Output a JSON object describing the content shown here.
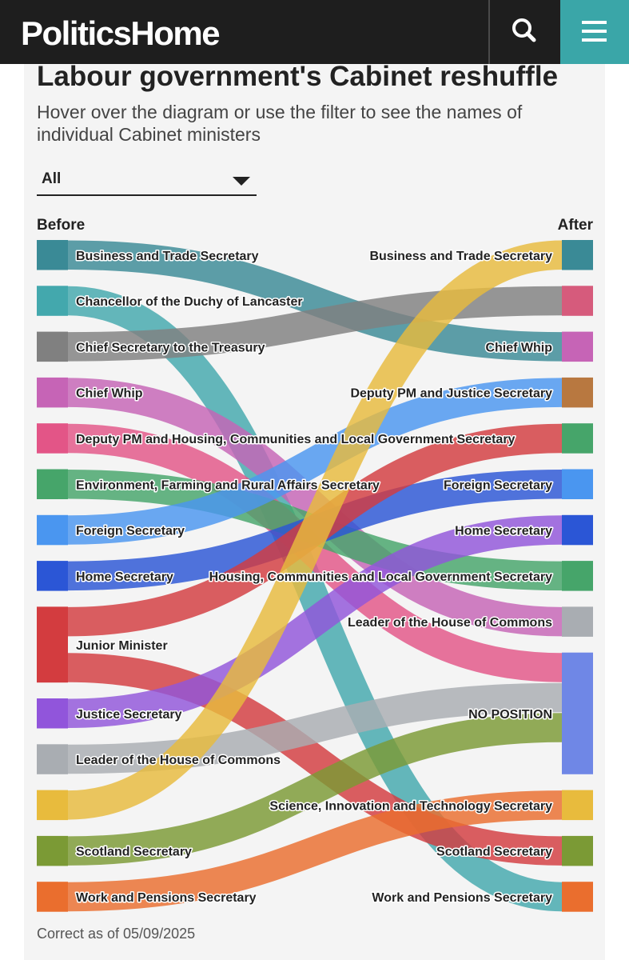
{
  "header": {
    "logo": "PoliticsHome",
    "search_icon": "search-icon",
    "menu_icon": "menu-icon",
    "bg_color": "#1e1e1e",
    "accent_color": "#3aa6a8"
  },
  "title": "Labour government's Cabinet reshuffle",
  "subtitle": "Hover over the diagram or use the filter to see the names of individual Cabinet ministers",
  "filter": {
    "selected": "All"
  },
  "columns": {
    "before": "Before",
    "after": "After"
  },
  "diagram": {
    "before_nodes": [
      {
        "id": "b_bt",
        "label": "Business and Trade Secretary",
        "color": "#3a8a96",
        "size": 1
      },
      {
        "id": "b_cdl",
        "label": "Chancellor of the Duchy of Lancaster",
        "color": "#43a8ad",
        "size": 1
      },
      {
        "id": "b_cst",
        "label": "Chief Secretary to the Treasury",
        "color": "#808080",
        "size": 1
      },
      {
        "id": "b_cw",
        "label": "Chief Whip",
        "color": "#c664b6",
        "size": 1
      },
      {
        "id": "b_dpm",
        "label": "Deputy PM and Housing, Communities and Local Government Secretary",
        "color": "#e35587",
        "size": 1
      },
      {
        "id": "b_env",
        "label": "Environment, Farming and Rural Affairs Secretary",
        "color": "#46a56a",
        "size": 1
      },
      {
        "id": "b_fs",
        "label": "Foreign Secretary",
        "color": "#4a96f0",
        "size": 1
      },
      {
        "id": "b_hs",
        "label": "Home Secretary",
        "color": "#2b56d6",
        "size": 1
      },
      {
        "id": "b_jm",
        "label": "Junior Minister",
        "color": "#d33c3f",
        "size": 2
      },
      {
        "id": "b_js",
        "label": "Justice Secretary",
        "color": "#9155db",
        "size": 1
      },
      {
        "id": "b_lhc",
        "label": "Leader of the House of Commons",
        "color": "#a9adb2",
        "size": 1
      },
      {
        "id": "b_sit",
        "label": "",
        "color": "#e8bb3d",
        "size": 1
      },
      {
        "id": "b_sco",
        "label": "Scotland Secretary",
        "color": "#7b9a35",
        "size": 1
      },
      {
        "id": "b_wp",
        "label": "Work and Pensions Secretary",
        "color": "#ea6e2e",
        "size": 1
      }
    ],
    "after_nodes": [
      {
        "id": "a_bt",
        "label": "Business and Trade Secretary",
        "color": "#3a8a96",
        "size": 1
      },
      {
        "id": "a_cdl",
        "label": "",
        "color": "#d65b7c",
        "size": 1
      },
      {
        "id": "a_cw",
        "label": "Chief Whip",
        "color": "#c664b6",
        "size": 1
      },
      {
        "id": "a_dpm",
        "label": "Deputy PM and Justice Secretary",
        "color": "#b87840",
        "size": 1
      },
      {
        "id": "a_env",
        "label": "",
        "color": "#46a56a",
        "size": 1
      },
      {
        "id": "a_fs",
        "label": "Foreign Secretary",
        "color": "#4a96f0",
        "size": 1
      },
      {
        "id": "a_hs",
        "label": "Home Secretary",
        "color": "#2b56d6",
        "size": 1
      },
      {
        "id": "a_hclg",
        "label": "Housing, Communities and Local Government Secretary",
        "color": "#46a56a",
        "size": 1
      },
      {
        "id": "a_lhc",
        "label": "Leader of the House of Commons",
        "color": "#a9adb2",
        "size": 1
      },
      {
        "id": "a_np",
        "label": "NO POSITION",
        "color": "#6f87e6",
        "size": 3
      },
      {
        "id": "a_sit",
        "label": "Science, Innovation and Technology Secretary",
        "color": "#e8bb3d",
        "size": 1
      },
      {
        "id": "a_sco",
        "label": "Scotland Secretary",
        "color": "#7b9a35",
        "size": 1
      },
      {
        "id": "a_wp",
        "label": "Work and Pensions Secretary",
        "color": "#ea6e2e",
        "size": 1
      }
    ],
    "links": [
      {
        "from": "b_bt",
        "to": "a_cw"
      },
      {
        "from": "b_cdl",
        "to": "a_wp"
      },
      {
        "from": "b_cst",
        "to": "a_cdl"
      },
      {
        "from": "b_cw",
        "to": "a_lhc"
      },
      {
        "from": "b_dpm",
        "to": "a_np"
      },
      {
        "from": "b_env",
        "to": "a_hclg"
      },
      {
        "from": "b_fs",
        "to": "a_dpm"
      },
      {
        "from": "b_hs",
        "to": "a_fs"
      },
      {
        "from": "b_jm",
        "to": "a_env"
      },
      {
        "from": "b_jm",
        "to": "a_sco"
      },
      {
        "from": "b_js",
        "to": "a_hs"
      },
      {
        "from": "b_lhc",
        "to": "a_np"
      },
      {
        "from": "b_sit",
        "to": "a_bt"
      },
      {
        "from": "b_sco",
        "to": "a_np"
      },
      {
        "from": "b_wp",
        "to": "a_sit"
      }
    ]
  },
  "footnote": "Correct as of 05/09/2025"
}
